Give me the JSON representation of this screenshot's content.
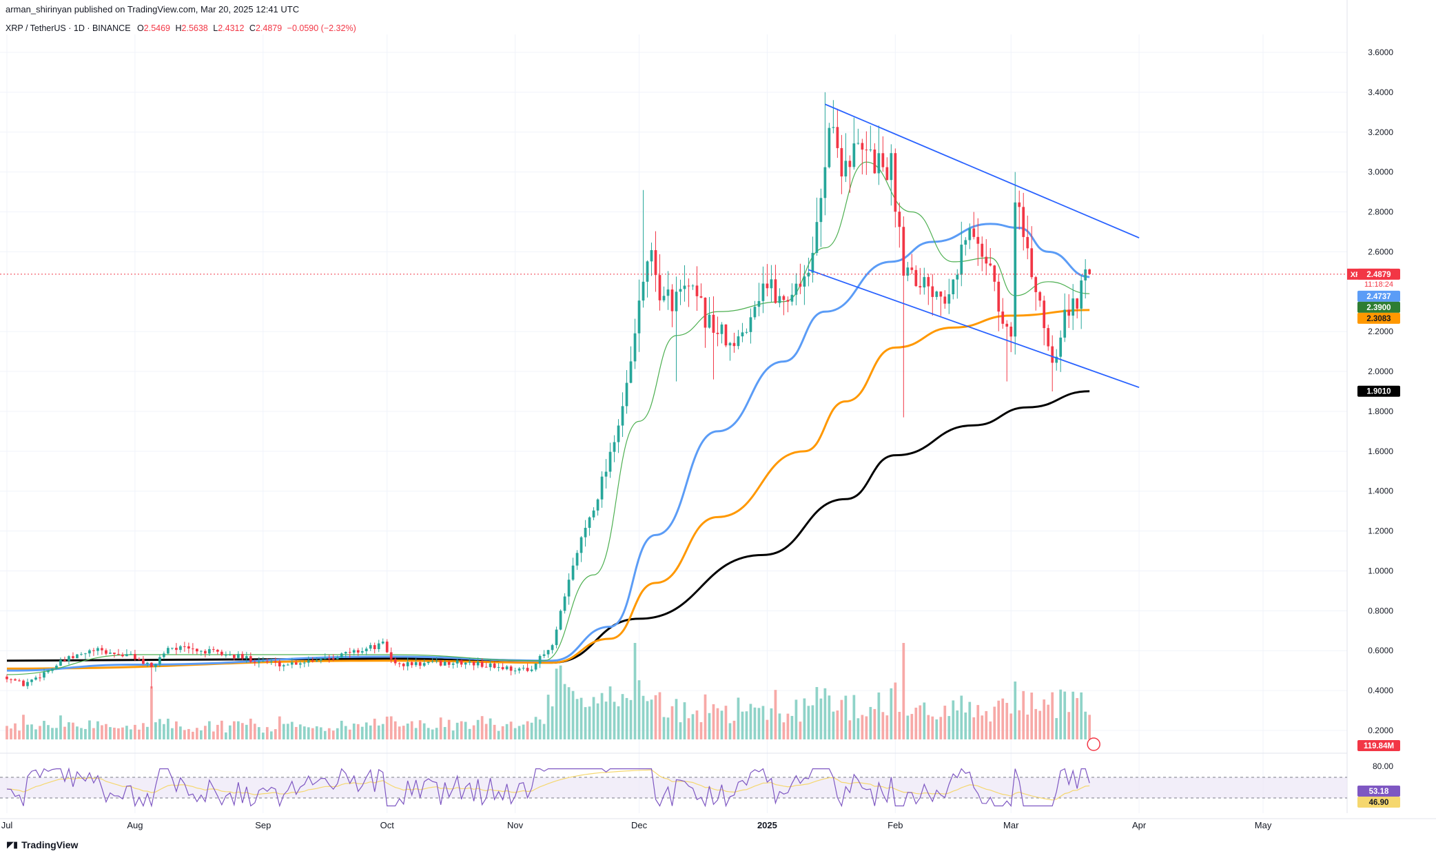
{
  "header": {
    "publisher_line": "arman_shirinyan published on TradingView.com, Mar 20, 2025 12:41 UTC",
    "symbol_line": "XRP / TetherUS · 1D · BINANCE",
    "ohlc": {
      "o_label": "O",
      "o": "2.5469",
      "h_label": "H",
      "h": "2.5638",
      "l_label": "L",
      "l": "2.4312",
      "c_label": "C",
      "c": "2.4879",
      "change": "−0.0590 (−2.32%)"
    }
  },
  "footer": {
    "brand": "TradingView"
  },
  "colors": {
    "up": "#26a69a",
    "down": "#f23645",
    "ma_green": "#4caf50",
    "ma_blue": "#2962ff",
    "ma_blue_light": "#5b9cf6",
    "ma_orange": "#ff9800",
    "ma_black": "#000000",
    "trendline": "#2962ff",
    "rsi": "#7e57c2",
    "rsi_ma": "#f5d76e"
  },
  "price_labels": {
    "symbol": "XRPUSDT",
    "last": "2.4879",
    "countdown": "11:18:24",
    "ma_blue": "2.4737",
    "ma_green": "2.3900",
    "ma_orange": "2.3083",
    "ma_black": "1.9010",
    "volume": "119.84M"
  },
  "rsi_labels": {
    "level": "80.00",
    "rsi": "53.18",
    "rsi_ma": "46.90"
  },
  "chart_data": {
    "type": "candlestick",
    "title": "XRP / TetherUS · 1D · BINANCE",
    "ylim": [
      0.1,
      3.68
    ],
    "y_ticks": [
      "3.6000",
      "3.4000",
      "3.2000",
      "3.0000",
      "2.8000",
      "2.6000",
      "2.2000",
      "2.0000",
      "1.8000",
      "1.6000",
      "1.4000",
      "1.2000",
      "1.0000",
      "0.8000",
      "0.6000",
      "0.4000",
      "0.2000"
    ],
    "x_ticks": [
      "Jul",
      "Aug",
      "Sep",
      "Oct",
      "Nov",
      "Dec",
      "2025",
      "Feb",
      "Mar",
      "Apr",
      "May"
    ],
    "x_tick_dates": [
      "2024-07-01",
      "2024-08-01",
      "2024-09-01",
      "2024-10-01",
      "2024-11-01",
      "2024-12-01",
      "2025-01-01",
      "2025-02-01",
      "2025-03-01",
      "2025-04-01",
      "2025-05-01"
    ],
    "x_range": [
      "2024-07-01",
      "2025-05-18"
    ],
    "price_anchors": [
      {
        "date": "2024-07-01",
        "close": 0.47
      },
      {
        "date": "2024-07-05",
        "close": 0.43
      },
      {
        "date": "2024-07-15",
        "close": 0.55
      },
      {
        "date": "2024-07-22",
        "close": 0.6
      },
      {
        "date": "2024-08-01",
        "close": 0.57
      },
      {
        "date": "2024-08-05",
        "close": 0.51
      },
      {
        "date": "2024-08-09",
        "close": 0.62
      },
      {
        "date": "2024-08-20",
        "close": 0.59
      },
      {
        "date": "2024-09-06",
        "close": 0.53
      },
      {
        "date": "2024-09-20",
        "close": 0.58
      },
      {
        "date": "2024-09-30",
        "close": 0.63
      },
      {
        "date": "2024-10-03",
        "close": 0.53
      },
      {
        "date": "2024-10-20",
        "close": 0.54
      },
      {
        "date": "2024-11-04",
        "close": 0.5
      },
      {
        "date": "2024-11-10",
        "close": 0.62
      },
      {
        "date": "2024-11-16",
        "close": 1.1
      },
      {
        "date": "2024-11-22",
        "close": 1.45
      },
      {
        "date": "2024-11-28",
        "close": 1.9
      },
      {
        "date": "2024-12-03",
        "close": 2.6
      },
      {
        "date": "2024-12-07",
        "close": 2.35
      },
      {
        "date": "2024-12-13",
        "close": 2.4
      },
      {
        "date": "2024-12-18",
        "close": 2.25
      },
      {
        "date": "2024-12-24",
        "close": 2.1
      },
      {
        "date": "2024-12-31",
        "close": 2.45
      },
      {
        "date": "2025-01-05",
        "close": 2.35
      },
      {
        "date": "2025-01-12",
        "close": 2.55
      },
      {
        "date": "2025-01-16",
        "close": 3.25
      },
      {
        "date": "2025-01-19",
        "close": 3.05
      },
      {
        "date": "2025-01-23",
        "close": 3.1
      },
      {
        "date": "2025-01-31",
        "close": 3.02
      },
      {
        "date": "2025-02-03",
        "close": 2.55
      },
      {
        "date": "2025-02-08",
        "close": 2.45
      },
      {
        "date": "2025-02-13",
        "close": 2.4
      },
      {
        "date": "2025-02-19",
        "close": 2.7
      },
      {
        "date": "2025-02-24",
        "close": 2.55
      },
      {
        "date": "2025-02-26",
        "close": 2.3
      },
      {
        "date": "2025-03-01",
        "close": 2.15
      },
      {
        "date": "2025-03-02",
        "close": 2.92
      },
      {
        "date": "2025-03-05",
        "close": 2.55
      },
      {
        "date": "2025-03-08",
        "close": 2.35
      },
      {
        "date": "2025-03-11",
        "close": 2.05
      },
      {
        "date": "2025-03-14",
        "close": 2.3
      },
      {
        "date": "2025-03-17",
        "close": 2.33
      },
      {
        "date": "2025-03-19",
        "close": 2.55
      },
      {
        "date": "2025-03-20",
        "close": 2.4879
      }
    ],
    "spikes": [
      {
        "date": "2024-08-05",
        "low": 0.41
      },
      {
        "date": "2024-12-02",
        "high": 2.91
      },
      {
        "date": "2024-12-10",
        "low": 1.95
      },
      {
        "date": "2024-12-19",
        "low": 1.96
      },
      {
        "date": "2025-01-15",
        "high": 3.4
      },
      {
        "date": "2025-02-03",
        "low": 1.77
      },
      {
        "date": "2025-03-02",
        "high": 3.0
      },
      {
        "date": "2025-02-28",
        "low": 1.95
      },
      {
        "date": "2025-03-11",
        "low": 1.9
      }
    ],
    "moving_averages": [
      {
        "color_key": "ma_black",
        "points": [
          [
            "2024-07-01",
            0.55
          ],
          [
            "2024-10-01",
            0.56
          ],
          [
            "2024-11-10",
            0.54
          ],
          [
            "2024-12-01",
            0.76
          ],
          [
            "2024-12-31",
            1.08
          ],
          [
            "2025-01-20",
            1.36
          ],
          [
            "2025-02-01",
            1.58
          ],
          [
            "2025-02-20",
            1.73
          ],
          [
            "2025-03-05",
            1.82
          ],
          [
            "2025-03-20",
            1.901
          ]
        ]
      },
      {
        "color_key": "ma_orange",
        "points": [
          [
            "2024-07-01",
            0.51
          ],
          [
            "2024-10-01",
            0.55
          ],
          [
            "2024-11-10",
            0.54
          ],
          [
            "2024-11-24",
            0.66
          ],
          [
            "2024-12-05",
            0.94
          ],
          [
            "2024-12-20",
            1.27
          ],
          [
            "2025-01-10",
            1.6
          ],
          [
            "2025-01-20",
            1.85
          ],
          [
            "2025-02-01",
            2.12
          ],
          [
            "2025-02-15",
            2.22
          ],
          [
            "2025-03-01",
            2.28
          ],
          [
            "2025-03-20",
            2.3083
          ]
        ]
      },
      {
        "color_key": "ma_blue_light",
        "points": [
          [
            "2024-07-01",
            0.5
          ],
          [
            "2024-08-01",
            0.53
          ],
          [
            "2024-10-01",
            0.57
          ],
          [
            "2024-11-10",
            0.55
          ],
          [
            "2024-11-24",
            0.72
          ],
          [
            "2024-12-05",
            1.18
          ],
          [
            "2024-12-20",
            1.7
          ],
          [
            "2025-01-05",
            2.05
          ],
          [
            "2025-01-15",
            2.3
          ],
          [
            "2025-01-31",
            2.55
          ],
          [
            "2025-02-10",
            2.65
          ],
          [
            "2025-02-24",
            2.74
          ],
          [
            "2025-03-03",
            2.72
          ],
          [
            "2025-03-10",
            2.6
          ],
          [
            "2025-03-20",
            2.4737
          ]
        ]
      },
      {
        "color_key": "ma_green",
        "points": [
          [
            "2024-07-01",
            0.48
          ],
          [
            "2024-08-01",
            0.58
          ],
          [
            "2024-10-01",
            0.58
          ],
          [
            "2024-11-08",
            0.55
          ],
          [
            "2024-11-20",
            0.98
          ],
          [
            "2024-12-01",
            1.75
          ],
          [
            "2024-12-10",
            2.18
          ],
          [
            "2024-12-20",
            2.3
          ],
          [
            "2025-01-05",
            2.35
          ],
          [
            "2025-01-15",
            2.62
          ],
          [
            "2025-01-25",
            3.05
          ],
          [
            "2025-02-05",
            2.8
          ],
          [
            "2025-02-15",
            2.55
          ],
          [
            "2025-02-24",
            2.57
          ],
          [
            "2025-03-02",
            2.38
          ],
          [
            "2025-03-10",
            2.45
          ],
          [
            "2025-03-20",
            2.39
          ]
        ]
      }
    ],
    "trendlines": [
      {
        "from": [
          "2025-01-15",
          3.34
        ],
        "to": [
          "2025-04-01",
          2.67
        ]
      },
      {
        "from": [
          "2025-01-11",
          2.51
        ],
        "to": [
          "2025-04-01",
          1.92
        ]
      }
    ],
    "volume_notable": [
      {
        "date": "2024-08-05",
        "value": 0.55
      },
      {
        "date": "2024-11-30",
        "value": 1.0
      },
      {
        "date": "2025-02-03",
        "value": 1.0
      },
      {
        "date": "2025-03-02",
        "value": 0.6
      }
    ],
    "rsi": {
      "levels": [
        80.0,
        53.18,
        46.9
      ],
      "overbought": 70,
      "oversold": 30
    }
  }
}
